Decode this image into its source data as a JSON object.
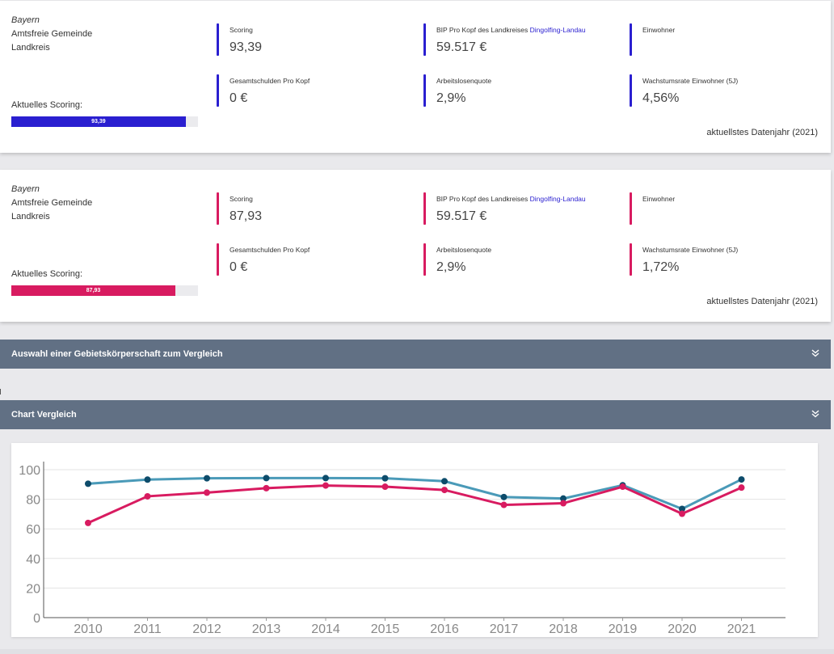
{
  "colors": {
    "blue_accent": "#2a1fd0",
    "pink_accent": "#d81b60",
    "header_bg": "#617084",
    "series_blue": "#4a9ab8",
    "series_blue_dot": "#0d4c6b"
  },
  "cards": [
    {
      "state": "Bayern",
      "type": "Amtsfreie Gemeinde",
      "kind": "Landkreis",
      "scoring_label": "Aktuelles Scoring:",
      "bar_value": 93.39,
      "bar_text": "93,39",
      "metrics": {
        "scoring": {
          "label": "Scoring",
          "value": "93,39"
        },
        "bip": {
          "label": "BIP Pro Kopf des Landkreises",
          "link": "Dingolfing-Landau",
          "value": "59.517 €"
        },
        "einwohner": {
          "label": "Einwohner",
          "value": ""
        },
        "schulden": {
          "label": "Gesamtschulden Pro Kopf",
          "value": "0 €"
        },
        "arbeitslosen": {
          "label": "Arbeitslosenquote",
          "value": "2,9%"
        },
        "wachstum": {
          "label": "Wachstumsrate Einwohner (5J)",
          "value": "4,56%"
        }
      },
      "datenjahr": "aktuellstes Datenjahr (2021)"
    },
    {
      "state": "Bayern",
      "type": "Amtsfreie Gemeinde",
      "kind": "Landkreis",
      "scoring_label": "Aktuelles Scoring:",
      "bar_value": 87.93,
      "bar_text": "87,93",
      "metrics": {
        "scoring": {
          "label": "Scoring",
          "value": "87,93"
        },
        "bip": {
          "label": "BIP Pro Kopf des Landkreises",
          "link": "Dingolfing-Landau",
          "value": "59.517 €"
        },
        "einwohner": {
          "label": "Einwohner",
          "value": ""
        },
        "schulden": {
          "label": "Gesamtschulden Pro Kopf",
          "value": "0 €"
        },
        "arbeitslosen": {
          "label": "Arbeitslosenquote",
          "value": "2,9%"
        },
        "wachstum": {
          "label": "Wachstumsrate Einwohner (5J)",
          "value": "1,72%"
        }
      },
      "datenjahr": "aktuellstes Datenjahr (2021)"
    }
  ],
  "panels": {
    "vergleich": {
      "title": "Auswahl einer Gebietskörperschaft zum Vergleich",
      "icon": "chevron-double-down-icon"
    },
    "chart": {
      "title": "Chart Vergleich",
      "icon": "chevron-double-down-icon"
    }
  },
  "chart_data": {
    "type": "line",
    "x": [
      "2010",
      "2011",
      "2012",
      "2013",
      "2014",
      "2015",
      "2016",
      "2017",
      "2018",
      "2019",
      "2020",
      "2021"
    ],
    "ylim": [
      0,
      100
    ],
    "yticks": [
      "0",
      "20",
      "40",
      "60",
      "80",
      "100"
    ],
    "grid": true,
    "series": [
      {
        "color": "#4a9ab8",
        "dot": "#0d4c6b",
        "values": [
          90.5,
          93.3,
          94.2,
          94.3,
          94.3,
          94.2,
          92.2,
          81.5,
          80.5,
          89.5,
          73.5,
          93.4
        ]
      },
      {
        "color": "#d81b60",
        "dot": "#d81b60",
        "values": [
          64,
          82,
          84.5,
          87.5,
          89.3,
          88.5,
          86.3,
          76.2,
          77.3,
          88.5,
          70.2,
          87.9
        ]
      }
    ]
  }
}
